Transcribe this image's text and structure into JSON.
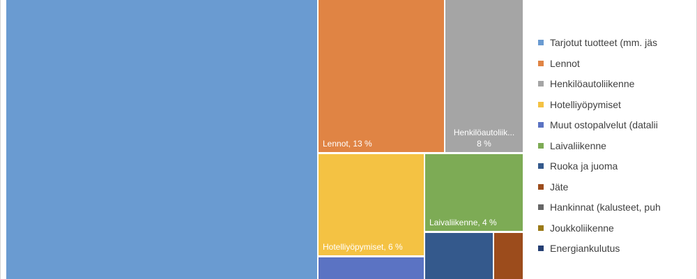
{
  "chart_data": {
    "type": "treemap",
    "title": "",
    "categories": [
      "Tarjotut tuotteet (mm. jäs",
      "Lennot",
      "Henkilöautoliikenne",
      "Hotelliyöpymiset",
      "Muut ostopalvelut (datalii",
      "Laivaliikenne",
      "Ruoka ja juoma",
      "Jäte",
      "Hankinnat (kalusteet, puh",
      "Joukkoliikenne",
      "Energiankulutus"
    ],
    "values": [
      59.5,
      13,
      8,
      6,
      2,
      4,
      2.5,
      1,
      1,
      1.5,
      1.5
    ],
    "colors": [
      "#6a9bd1",
      "#e08444",
      "#a5a5a5",
      "#f4c243",
      "#5b73c3",
      "#7dab55",
      "#34598c",
      "#9c4c1c",
      "#666666",
      "#9b7a18",
      "#253f73"
    ],
    "data_labels": {
      "Lennot": "Lennot, 13 %",
      "Henkilöautoliikenne": [
        "Henkilöautoliik...",
        "8 %"
      ],
      "Hotelliyöpymiset": "Hotelliyöpymiset, 6 %",
      "Laivaliikenne": "Laivaliikenne, 4 %"
    },
    "legend_position": "right"
  }
}
